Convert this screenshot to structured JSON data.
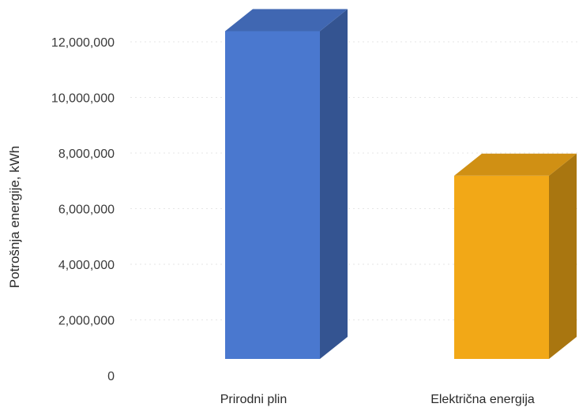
{
  "chart_data": {
    "type": "bar",
    "style": "3d-column",
    "categories": [
      "Prirodni plin",
      "Električna energija"
    ],
    "series": [
      {
        "values": [
          12100000,
          6900000
        ],
        "colors": [
          "#4a78cf",
          "#f2a817"
        ]
      }
    ],
    "ylabel": "Potrošnja energije, kWh",
    "xlabel": "",
    "ylim": [
      0,
      12000000
    ],
    "yticks": [
      "0",
      "2,000,000",
      "4,000,000",
      "6,000,000",
      "8,000,000",
      "10,000,000",
      "12,000,000"
    ],
    "grid": true,
    "legend": "none"
  }
}
